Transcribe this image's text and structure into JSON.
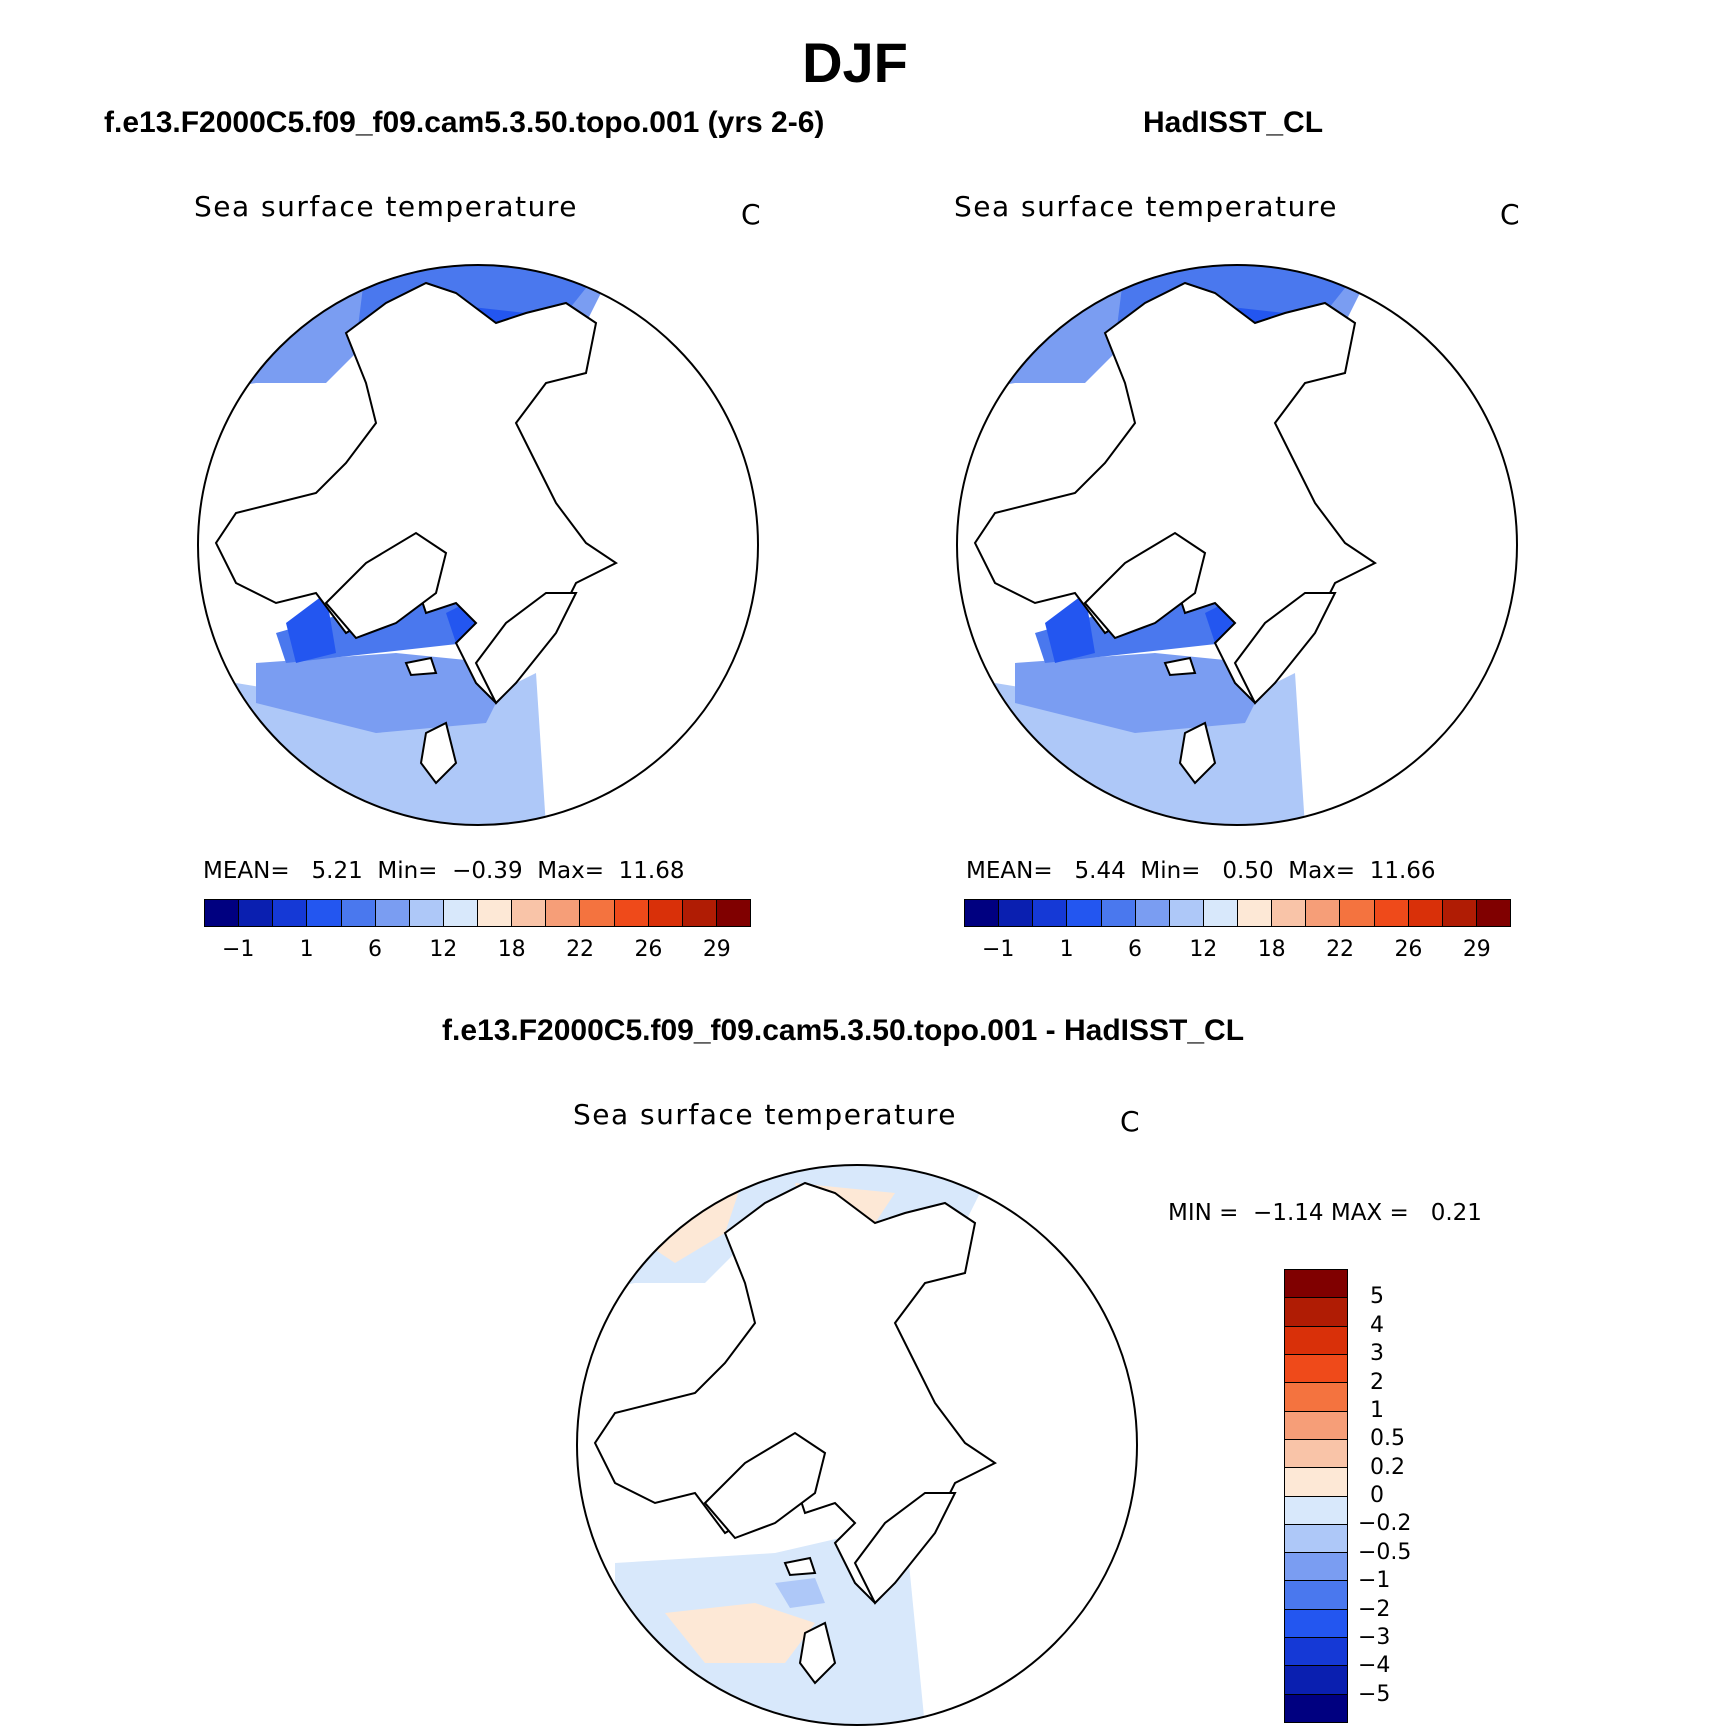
{
  "title": "DJF",
  "panels": [
    {
      "id": "model",
      "title": "f.e13.F2000C5.f09_f09.cam5.3.50.topo.001 (yrs 2-6)",
      "field": "Sea surface temperature",
      "units": "C",
      "stats": {
        "mean_label": "MEAN=",
        "mean": "5.21",
        "min_label": "Min=",
        "min": "−0.39",
        "max_label": "Max=",
        "max": "11.68"
      }
    },
    {
      "id": "obs",
      "title": "HadISST_CL",
      "field": "Sea surface temperature",
      "units": "C",
      "stats": {
        "mean_label": "MEAN=",
        "mean": "5.44",
        "min_label": "Min=",
        "min": "0.50",
        "max_label": "Max=",
        "max": "11.66"
      }
    },
    {
      "id": "diff",
      "title": "f.e13.F2000C5.f09_f09.cam5.3.50.topo.001 - HadISST_CL",
      "field": "Sea surface temperature",
      "units": "C",
      "stats": {
        "min_label": "MIN =",
        "min": "−1.14",
        "max_label": "MAX =",
        "max": "0.21"
      }
    }
  ],
  "sst_colorbar": {
    "colors": [
      "#000080",
      "#0a1fb0",
      "#1539d6",
      "#2356f0",
      "#4a78ee",
      "#7a9df2",
      "#aec8f8",
      "#d8e8fb",
      "#fde8d6",
      "#f9c4a8",
      "#f69e78",
      "#f4733f",
      "#ef4a1a",
      "#d93009",
      "#b01c04",
      "#800000"
    ],
    "labels": [
      "−1",
      "1",
      "6",
      "12",
      "18",
      "22",
      "26",
      "29"
    ]
  },
  "diff_colorbar": {
    "colors": [
      "#800000",
      "#b01c04",
      "#d93009",
      "#ef4a1a",
      "#f4733f",
      "#f69e78",
      "#f9c4a8",
      "#fde8d6",
      "#d8e8fb",
      "#aec8f8",
      "#7a9df2",
      "#4a78ee",
      "#2356f0",
      "#1539d6",
      "#0a1fb0",
      "#000080"
    ],
    "labels": [
      "5",
      "4",
      "3",
      "2",
      "1",
      "0.5",
      "0.2",
      "0",
      "−0.2",
      "−0.5",
      "−1",
      "−2",
      "−3",
      "−4",
      "−5"
    ]
  }
}
